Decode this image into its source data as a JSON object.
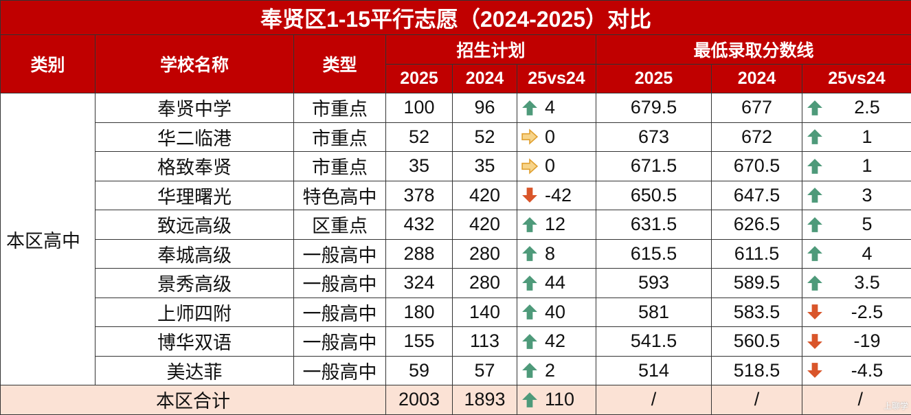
{
  "title": "奉贤区1-15平行志愿（2024-2025）对比",
  "header": {
    "category": "类别",
    "school": "学校名称",
    "type": "类型",
    "plan": "招生计划",
    "score": "最低录取分数线",
    "plan_cols": [
      "2025",
      "2024",
      "25vs24"
    ],
    "score_cols": [
      "2025",
      "2024",
      "25vs24"
    ]
  },
  "table": {
    "group": "本区高中",
    "rows": [
      [
        "奉贤中学",
        "市重点",
        100,
        96,
        4,
        679.5,
        677,
        2.5
      ],
      [
        "华二临港",
        "市重点",
        52,
        52,
        0,
        673,
        672,
        1
      ],
      [
        "格致奉贤",
        "市重点",
        35,
        35,
        0,
        671.5,
        670.5,
        1
      ],
      [
        "华理曙光",
        "特色高中",
        378,
        420,
        -42,
        650.5,
        647.5,
        3
      ],
      [
        "致远高级",
        "区重点",
        432,
        420,
        12,
        631.5,
        626.5,
        5
      ],
      [
        "奉城高级",
        "一般高中",
        288,
        280,
        8,
        615.5,
        611.5,
        4
      ],
      [
        "景秀高级",
        "一般高中",
        324,
        280,
        44,
        593,
        589.5,
        3.5
      ],
      [
        "上师四附",
        "一般高中",
        180,
        140,
        40,
        581,
        583.5,
        -2.5
      ],
      [
        "博华双语",
        "一般高中",
        155,
        113,
        42,
        541.5,
        560.5,
        -19
      ],
      [
        "美达菲",
        "一般高中",
        59,
        57,
        2,
        514,
        518.5,
        -4.5
      ]
    ],
    "total": [
      "本区合计",
      2003,
      1893,
      110,
      "/",
      "/",
      "/"
    ]
  },
  "watermark": "上聊学"
}
